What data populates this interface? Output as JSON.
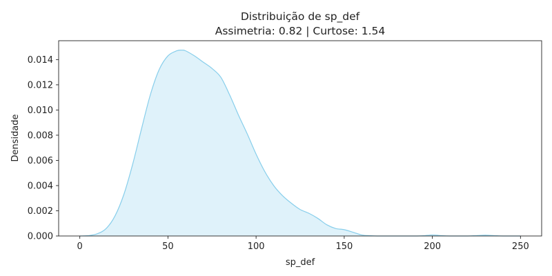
{
  "chart_data": {
    "type": "area",
    "title": "Distribuição de sp_def",
    "subtitle": "Assimetria: 0.82 | Curtose: 1.54",
    "xlabel": "sp_def",
    "ylabel": "Densidade",
    "xlim": [
      -12,
      262
    ],
    "ylim": [
      0,
      0.0155
    ],
    "xticks": [
      0,
      50,
      100,
      150,
      200,
      250
    ],
    "xtick_labels": [
      "0",
      "50",
      "100",
      "150",
      "200",
      "250"
    ],
    "yticks": [
      0,
      0.002,
      0.004,
      0.006,
      0.008,
      0.01,
      0.012,
      0.014
    ],
    "ytick_labels": [
      "0.000",
      "0.002",
      "0.004",
      "0.006",
      "0.008",
      "0.010",
      "0.012",
      "0.014"
    ],
    "grid": false,
    "line_color": "#87ceeb",
    "fill_color": "#87ceeb",
    "fill_alpha": 0.27,
    "x": [
      0,
      5,
      10,
      15,
      20,
      25,
      30,
      35,
      40,
      45,
      50,
      55,
      58,
      60,
      65,
      70,
      75,
      80,
      85,
      90,
      95,
      100,
      105,
      110,
      115,
      120,
      125,
      130,
      135,
      140,
      145,
      150,
      155,
      160,
      165,
      170,
      180,
      190,
      195,
      200,
      205,
      210,
      220,
      225,
      230,
      235,
      240,
      250
    ],
    "y": [
      0.0,
      3e-05,
      0.00018,
      0.0006,
      0.0016,
      0.0033,
      0.0057,
      0.0085,
      0.0112,
      0.0132,
      0.0143,
      0.0147,
      0.01475,
      0.0147,
      0.0143,
      0.0138,
      0.0133,
      0.0126,
      0.0112,
      0.0096,
      0.0081,
      0.0065,
      0.0051,
      0.004,
      0.0032,
      0.0026,
      0.0021,
      0.0018,
      0.0014,
      0.0009,
      0.0006,
      0.0005,
      0.0003,
      8e-05,
      2e-05,
      0.0,
      0.0,
      0.0,
      2e-05,
      8e-05,
      3e-05,
      0.0,
      0.0,
      3e-05,
      6e-05,
      3e-05,
      0.0,
      0.0
    ]
  }
}
